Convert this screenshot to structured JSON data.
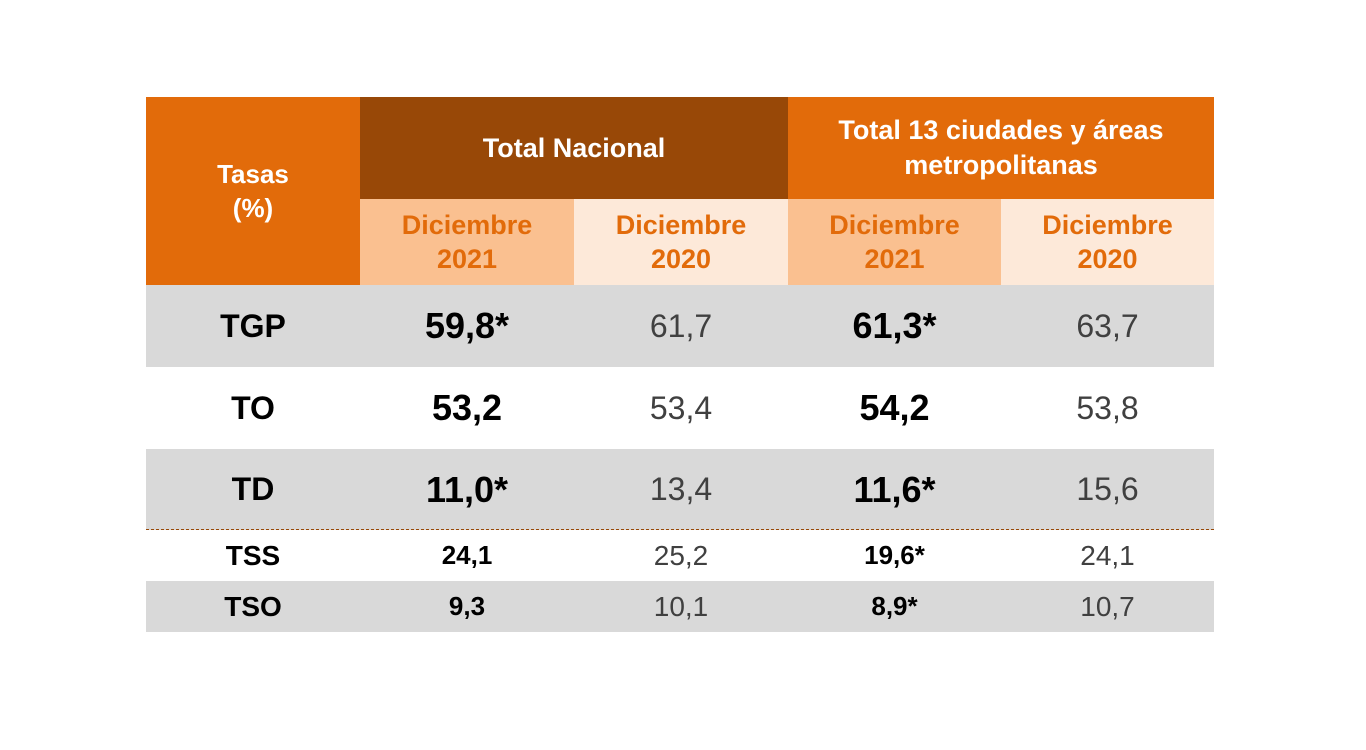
{
  "header": {
    "tasas": "Tasas",
    "tasas_unit": "(%)",
    "group1": "Total Nacional",
    "group2_line1": "Total 13 ciudades y áreas",
    "group2_line2": "metropolitanas",
    "sub": [
      {
        "month": "Diciembre",
        "year": "2021"
      },
      {
        "month": "Diciembre",
        "year": "2020"
      },
      {
        "month": "Diciembre",
        "year": "2021"
      },
      {
        "month": "Diciembre",
        "year": "2020"
      }
    ]
  },
  "rows": [
    {
      "label": "TGP",
      "v": [
        "59,8*",
        "61,7",
        "61,3*",
        "63,7"
      ]
    },
    {
      "label": "TO",
      "v": [
        "53,2",
        "53,4",
        "54,2",
        "53,8"
      ]
    },
    {
      "label": "TD",
      "v": [
        "11,0*",
        "13,4",
        "11,6*",
        "15,6"
      ]
    },
    {
      "label": "TSS",
      "v": [
        "24,1",
        "25,2",
        "19,6*",
        "24,1"
      ]
    },
    {
      "label": "TSO",
      "v": [
        "9,3",
        "10,1",
        "8,9*",
        "10,7"
      ]
    }
  ],
  "colors": {
    "orange": "#e26b0a",
    "brown": "#984807",
    "peach": "#fac090",
    "light_peach": "#fde9d9",
    "gray_row": "#d9d9d9"
  }
}
